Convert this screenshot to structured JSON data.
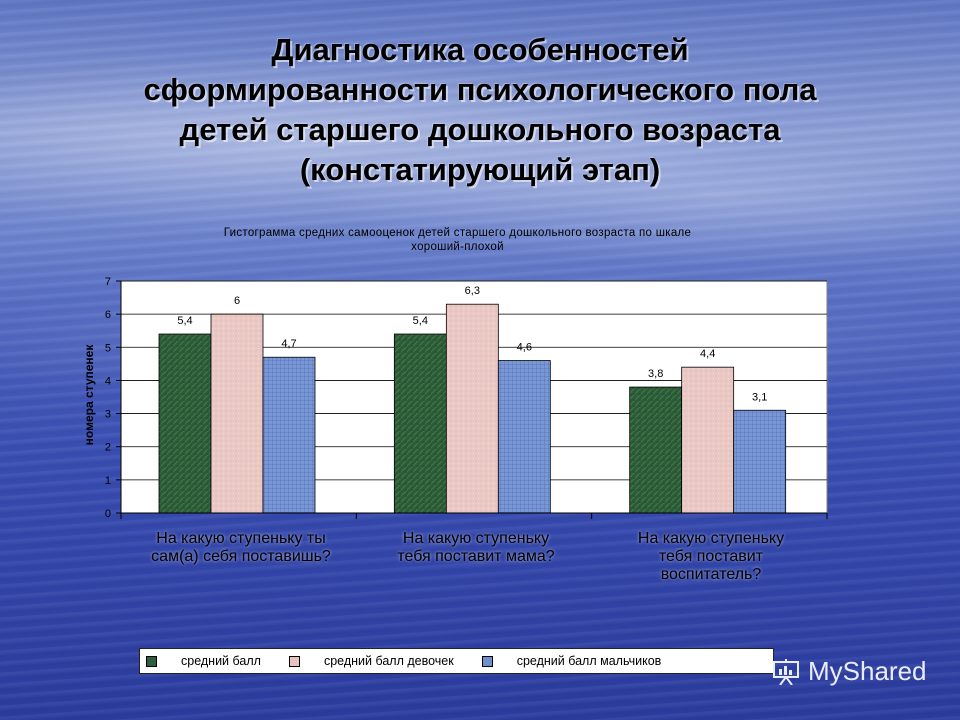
{
  "slide": {
    "title_lines": [
      "Диагностика особенностей",
      "сформированности психологического пола",
      "детей  старшего дошкольного  возраста",
      "(констатирующий этап)"
    ]
  },
  "chart_data": {
    "type": "bar",
    "title_lines": [
      "Гистограмма средних самооценок детей старшего дошкольного возраста по шкале",
      "хороший-плохой"
    ],
    "ylabel": "номера ступенек",
    "ylim": [
      0,
      7
    ],
    "yticks": [
      "0",
      "1",
      "2",
      "3",
      "4",
      "5",
      "6",
      "7"
    ],
    "categories": [
      [
        "На какую ступеньку ты",
        "сам(а) себя поставишь?"
      ],
      [
        "На какую ступеньку",
        "тебя поставит мама?"
      ],
      [
        "На какую ступеньку",
        "тебя  поставит",
        "воспитатель?"
      ]
    ],
    "series": [
      {
        "name": "средний балл",
        "values": [
          5.4,
          5.4,
          3.8
        ],
        "labels": [
          "5,4",
          "5,4",
          "3,8"
        ],
        "color": "#2f5f3a"
      },
      {
        "name": "средний балл девочек",
        "values": [
          6,
          6.3,
          4.4
        ],
        "labels": [
          "6",
          "6,3",
          "4,4"
        ],
        "color": "#e8c4c0"
      },
      {
        "name": "средний балл мальчиков",
        "values": [
          4.7,
          4.6,
          3.1
        ],
        "labels": [
          "4,7",
          "4,6",
          "3,1"
        ],
        "color": "#6f8fcf"
      }
    ],
    "grid": true,
    "legend_position": "bottom"
  },
  "watermark": {
    "text": "MyShared"
  }
}
